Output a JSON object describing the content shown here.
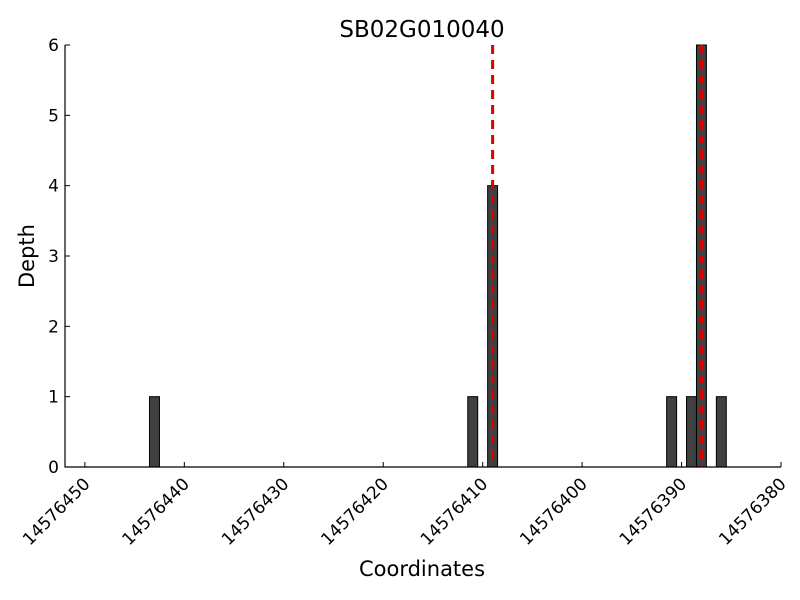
{
  "chart_data": {
    "type": "bar",
    "title": "SB02G010040",
    "xlabel": "Coordinates",
    "ylabel": "Depth",
    "x_reversed": true,
    "xlim": [
      14576452,
      14576380
    ],
    "ylim": [
      0,
      6
    ],
    "x_ticks": [
      14576450,
      14576440,
      14576430,
      14576420,
      14576410,
      14576400,
      14576390,
      14576380
    ],
    "x_tick_labels": [
      "14576450",
      "14576440",
      "14576430",
      "14576420",
      "14576410",
      "14576400",
      "14576390",
      "14576380"
    ],
    "y_ticks": [
      0,
      1,
      2,
      3,
      4,
      5,
      6
    ],
    "y_tick_labels": [
      "0",
      "1",
      "2",
      "3",
      "4",
      "5",
      "6"
    ],
    "bars": [
      {
        "x": 14576443,
        "value": 1
      },
      {
        "x": 14576411,
        "value": 1
      },
      {
        "x": 14576409,
        "value": 4
      },
      {
        "x": 14576391,
        "value": 1
      },
      {
        "x": 14576389,
        "value": 1
      },
      {
        "x": 14576388,
        "value": 6
      },
      {
        "x": 14576386,
        "value": 1
      }
    ],
    "reference_lines": [
      {
        "x": 14576409
      },
      {
        "x": 14576388
      }
    ],
    "grid": false,
    "legend": "none",
    "colors": {
      "bar_fill": "#404040",
      "bar_stroke": "#000000",
      "reference_line": "#dd0000",
      "axis": "#000000"
    }
  }
}
